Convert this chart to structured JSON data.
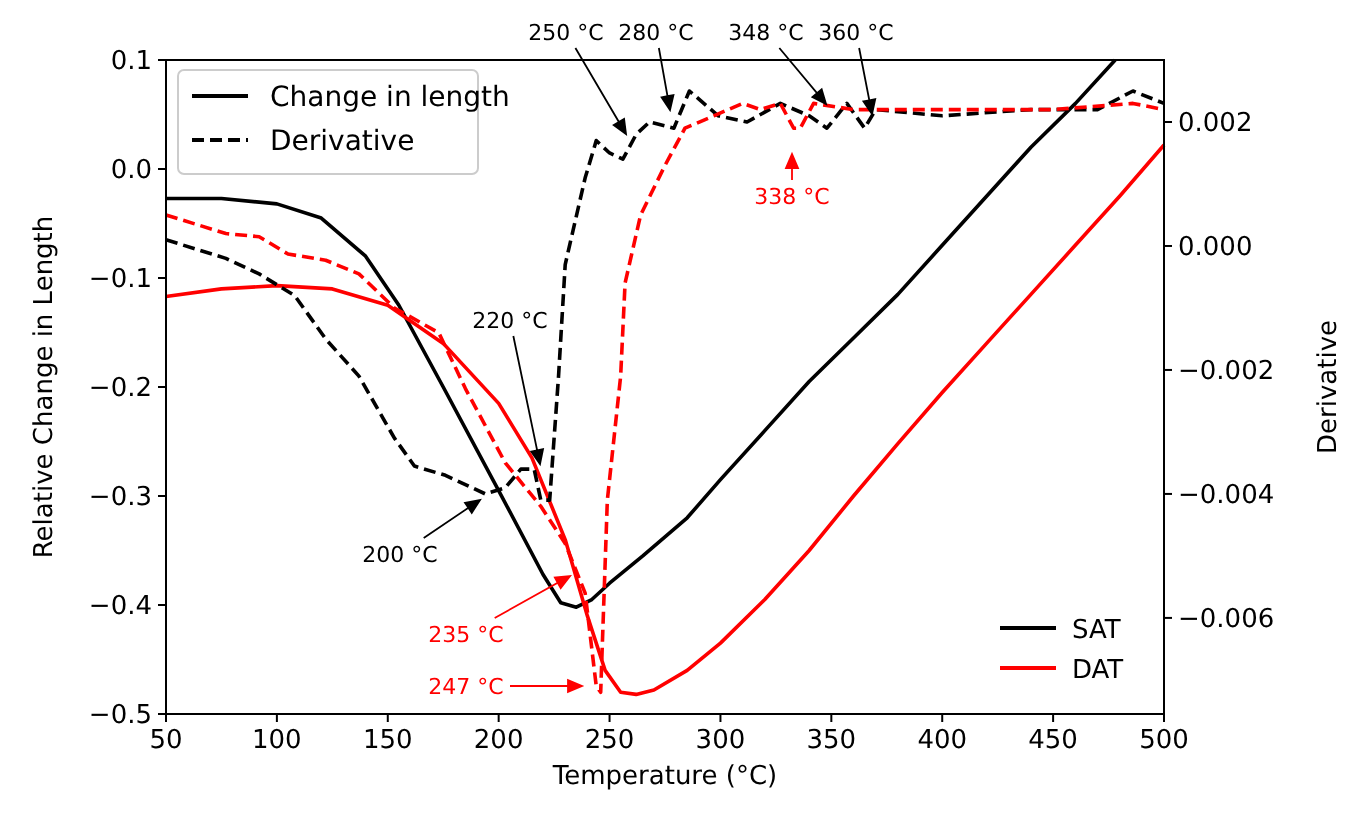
{
  "chart_data": {
    "type": "line",
    "xlabel": "Temperature (°C)",
    "ylabel": "Relative Change in Length",
    "y2label": "Derivative",
    "xlim": [
      50,
      500
    ],
    "xticks": [
      50,
      100,
      150,
      200,
      250,
      300,
      350,
      400,
      450,
      500
    ],
    "ylim": [
      -0.5,
      0.1
    ],
    "yticks": [
      {
        "value": -0.5,
        "label": "−0.5"
      },
      {
        "value": -0.4,
        "label": "−0.4"
      },
      {
        "value": -0.3,
        "label": "−0.3"
      },
      {
        "value": -0.2,
        "label": "−0.2"
      },
      {
        "value": -0.1,
        "label": "−0.1"
      },
      {
        "value": 0,
        "label": "0.0"
      },
      0.1
    ],
    "y2lim": [
      -0.00755,
      0.003
    ],
    "y2ticks": [
      {
        "value": -0.006,
        "label": "−0.006"
      },
      {
        "value": -0.004,
        "label": "−0.004"
      },
      {
        "value": -0.002,
        "label": "−0.002"
      },
      {
        "value": 0,
        "label": "0.000"
      },
      0.002
    ],
    "legend": "bottom right",
    "grid": false,
    "marker": "none",
    "series": [
      {
        "name": "SAT",
        "color": "#000000",
        "line_style": "solid",
        "x": [
          50,
          75,
          100,
          120,
          140,
          155,
          175,
          200,
          220,
          228,
          235,
          242,
          250,
          265,
          285,
          300,
          320,
          340,
          360,
          380,
          400,
          420,
          440,
          460,
          478
        ],
        "values": [
          -0.027,
          -0.027,
          -0.032,
          -0.045,
          -0.08,
          -0.125,
          -0.2,
          -0.295,
          -0.372,
          -0.398,
          -0.402,
          -0.395,
          -0.38,
          -0.355,
          -0.32,
          -0.285,
          -0.24,
          -0.195,
          -0.155,
          -0.115,
          -0.07,
          -0.025,
          0.02,
          0.06,
          0.1
        ]
      },
      {
        "name": "DAT",
        "color": "#ff0000",
        "line_style": "solid",
        "x": [
          50,
          75,
          100,
          125,
          150,
          175,
          200,
          215,
          230,
          240,
          248,
          255,
          262,
          270,
          285,
          300,
          320,
          340,
          360,
          380,
          400,
          420,
          440,
          460,
          480,
          500
        ],
        "values": [
          -0.117,
          -0.11,
          -0.107,
          -0.11,
          -0.125,
          -0.16,
          -0.215,
          -0.265,
          -0.34,
          -0.41,
          -0.46,
          -0.48,
          -0.482,
          -0.478,
          -0.46,
          -0.435,
          -0.395,
          -0.35,
          -0.3,
          -0.252,
          -0.205,
          -0.16,
          -0.115,
          -0.07,
          -0.025,
          0.022
        ]
      },
      {
        "color": "#000000",
        "line_style": "dashed",
        "axis": "y2",
        "x": [
          50,
          77,
          92,
          108,
          122,
          137,
          153,
          162,
          176,
          194,
          203,
          210,
          216,
          219,
          223,
          227,
          230,
          239,
          244,
          250,
          256,
          262,
          268,
          279,
          286,
          299,
          312,
          327,
          340,
          348,
          357,
          365,
          370,
          400,
          440,
          470,
          486,
          500
        ],
        "values": [
          0.0001,
          -0.0002,
          -0.00045,
          -0.0008,
          -0.0015,
          -0.0021,
          -0.0031,
          -0.00355,
          -0.0037,
          -0.004,
          -0.0039,
          -0.0036,
          -0.0036,
          -0.0041,
          -0.0041,
          -0.0021,
          -0.0003,
          0.0011,
          0.0017,
          0.0015,
          0.0014,
          0.0018,
          0.002,
          0.0019,
          0.0025,
          0.0021,
          0.002,
          0.0023,
          0.0021,
          0.0019,
          0.0023,
          0.0019,
          0.0022,
          0.0021,
          0.0022,
          0.0022,
          0.0025,
          0.0023
        ]
      },
      {
        "color": "#ff0000",
        "line_style": "dashed",
        "axis": "y2",
        "x": [
          50,
          77,
          92,
          105,
          122,
          137,
          153,
          173,
          185,
          203,
          219,
          230,
          239,
          244,
          246,
          249,
          255,
          257,
          264,
          275,
          284,
          297,
          310,
          318,
          327,
          333,
          336,
          342,
          360,
          400,
          450,
          486,
          500
        ],
        "values": [
          0.0005,
          0.0002,
          0.00015,
          -0.00013,
          -0.00023,
          -0.00045,
          -0.001,
          -0.0014,
          -0.0023,
          -0.0035,
          -0.0042,
          -0.0048,
          -0.0056,
          -0.0071,
          -0.0072,
          -0.0041,
          -0.0021,
          -0.0006,
          0.0005,
          0.0013,
          0.0019,
          0.0021,
          0.0023,
          0.0022,
          0.0023,
          0.0019,
          0.0019,
          0.0023,
          0.0022,
          0.0022,
          0.0022,
          0.0023,
          0.0022
        ]
      }
    ],
    "annotations": [
      "200 °C",
      "220 °C",
      "250 °C",
      "280 °C",
      "348 °C",
      "360 °C",
      "338 °C",
      "235 °C",
      "247 °C",
      "Change in length",
      "Derivative"
    ]
  }
}
